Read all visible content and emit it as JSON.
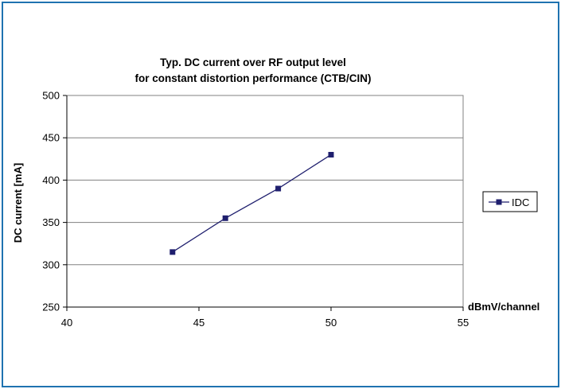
{
  "chart_data": {
    "type": "line",
    "title": [
      "Typ. DC current over RF output level",
      "for constant distortion performance (CTB/CIN)"
    ],
    "xlabel": "dBmV/channel",
    "ylabel": "DC current [mA]",
    "xlim": [
      40,
      55
    ],
    "ylim": [
      250,
      500
    ],
    "xticks": [
      40,
      45,
      50,
      55
    ],
    "yticks": [
      250,
      300,
      350,
      400,
      450,
      500
    ],
    "grid": "horizontal",
    "legend_position": "right",
    "series": [
      {
        "name": "IDC",
        "color": "#1f1f6e",
        "marker": "square",
        "points": [
          {
            "x": 44,
            "y": 315
          },
          {
            "x": 46,
            "y": 355
          },
          {
            "x": 48,
            "y": 390
          },
          {
            "x": 50,
            "y": 430
          }
        ]
      }
    ]
  },
  "colors": {
    "frame": "#1f73b0",
    "series": "#1f1f6e",
    "grid": "#808080"
  }
}
